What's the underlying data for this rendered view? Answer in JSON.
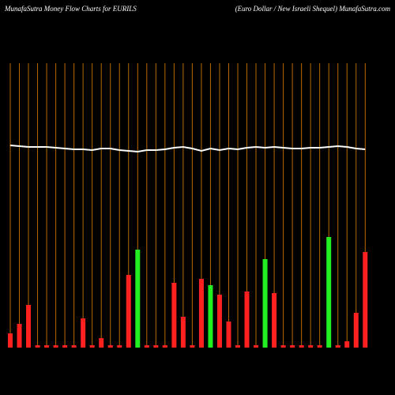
{
  "chart_data": {
    "type": "bar",
    "title": "MunafaSutra  Money Flow  Charts for EURILS",
    "subtitle": "(Euro  Dollar / New  Israeli  Shequel) MunafaSutra.com",
    "values": [
      18,
      30,
      54,
      3,
      3,
      3,
      3,
      3,
      37,
      3,
      12,
      3,
      3,
      92,
      124,
      3,
      3,
      3,
      82,
      39,
      3,
      87,
      79,
      67,
      33,
      3,
      71,
      3,
      112,
      69,
      3,
      3,
      3,
      3,
      3,
      140,
      3,
      8,
      44,
      121
    ],
    "colors": [
      "#ff2020",
      "#ff2020",
      "#ff2020",
      "#ff2020",
      "#ff2020",
      "#ff2020",
      "#ff2020",
      "#ff2020",
      "#ff2020",
      "#ff2020",
      "#ff2020",
      "#ff2020",
      "#ff2020",
      "#ff2020",
      "#22ee22",
      "#ff2020",
      "#ff2020",
      "#ff2020",
      "#ff2020",
      "#ff2020",
      "#ff2020",
      "#ff2020",
      "#22ee22",
      "#ff2020",
      "#ff2020",
      "#ff2020",
      "#ff2020",
      "#ff2020",
      "#22ee22",
      "#ff2020",
      "#ff2020",
      "#ff2020",
      "#ff2020",
      "#ff2020",
      "#ff2020",
      "#22ee22",
      "#ff2020",
      "#ff2020",
      "#ff2020",
      "#ff2020"
    ],
    "line": {
      "color": "#ffffff",
      "values": [
        256,
        255,
        254,
        254,
        254,
        253,
        252,
        251,
        251,
        250,
        252,
        252,
        250,
        249,
        248,
        250,
        250,
        251,
        253,
        254,
        252,
        249,
        252,
        250,
        252,
        251,
        253,
        254,
        253,
        254,
        253,
        252,
        252,
        253,
        253,
        254,
        255,
        254,
        252,
        251
      ]
    },
    "grid_color": "#b86a00",
    "ylim": [
      0,
      360
    ],
    "grid": true
  }
}
